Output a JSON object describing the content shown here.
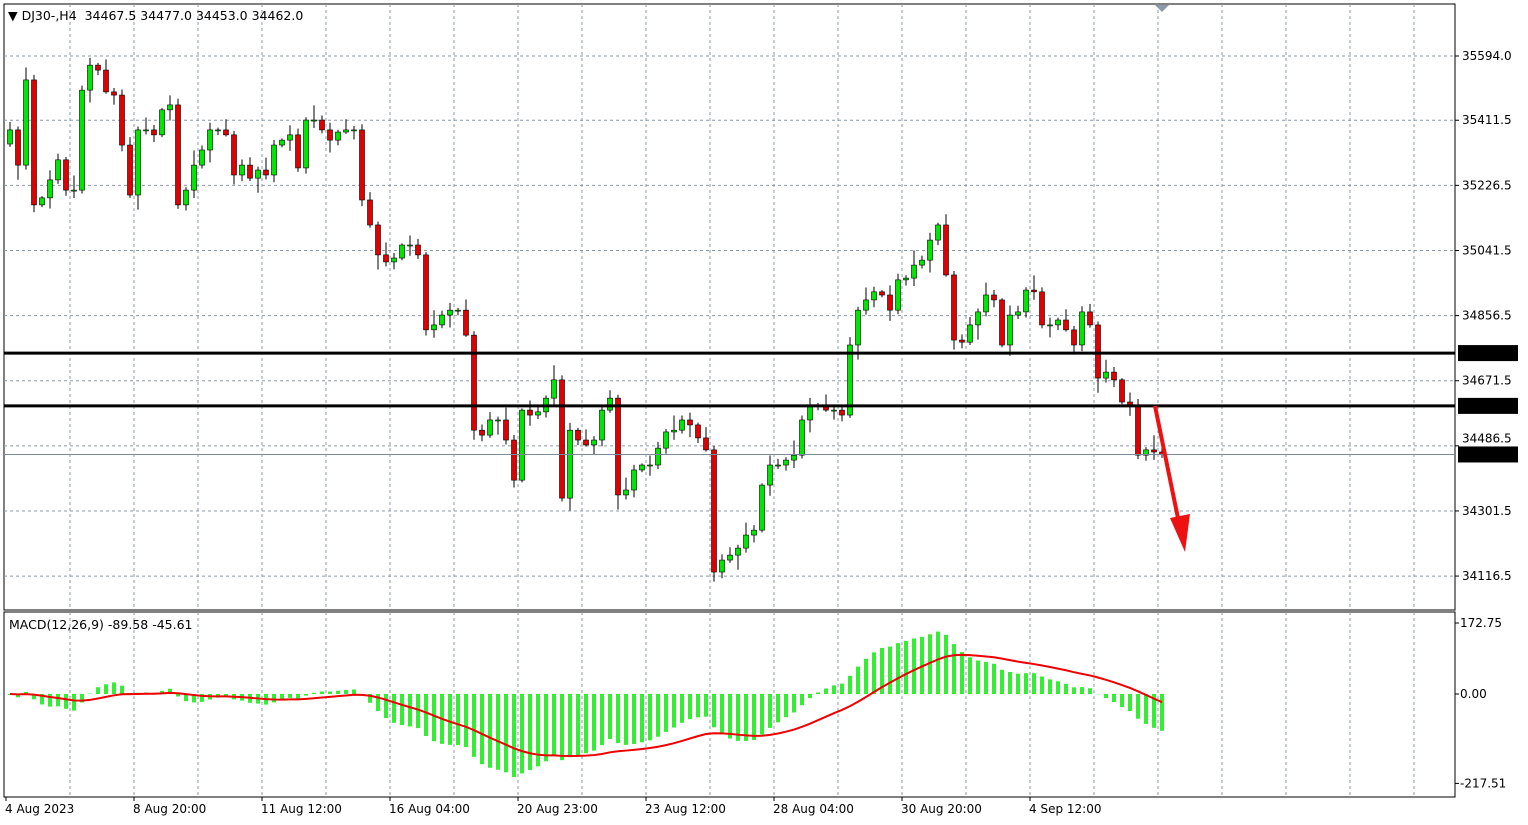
{
  "header": {
    "symbol": "DJ30-,H4",
    "ohlc": "34467.5 34477.0 34453.0 34462.0"
  },
  "colors": {
    "bull": "#00e600",
    "bear": "#e00000",
    "grid": "#8a9aa8",
    "macd_hist": "#33ee33",
    "signal": "#ee0000",
    "arrow": "#ee1111"
  },
  "chart_data": [
    {
      "type": "candlestick",
      "title": "DJ30-,H4",
      "timeframe": "H4",
      "ylim": [
        34060,
        35660
      ],
      "y_ticks": [
        "35594.0",
        "35411.5",
        "35226.5",
        "35041.5",
        "34856.5",
        "34671.5",
        "34486.5",
        "34301.5",
        "34116.5"
      ],
      "x_ticks": [
        "4 Aug 2023",
        "8 Aug 20:00",
        "11 Aug 12:00",
        "16 Aug 04:00",
        "20 Aug 23:00",
        "23 Aug 12:00",
        "28 Aug 04:00",
        "30 Aug 20:00",
        "4 Sep 12:00"
      ],
      "last_price": "34462.0",
      "hlines": [
        {
          "value": 34750.0,
          "label": "34750.0"
        },
        {
          "value": 34600.0,
          "label": "34600.0"
        }
      ],
      "annotation": "red-down-arrow",
      "grid": true,
      "closes": [
        35384,
        35284,
        35526,
        35171,
        35191,
        35242,
        35299,
        35213,
        35213,
        35497,
        35568,
        35554,
        35492,
        35483,
        35341,
        35199,
        35384,
        35384,
        35370,
        35441,
        35455,
        35171,
        35213,
        35284,
        35327,
        35384,
        35384,
        35370,
        35256,
        35284,
        35247,
        35270,
        35256,
        35341,
        35355,
        35370,
        35276,
        35412,
        35412,
        35384,
        35355,
        35378,
        35384,
        35384,
        35185,
        35114,
        35029,
        35009,
        35020,
        35057,
        35057,
        35029,
        34816,
        34830,
        34858,
        34872,
        34872,
        34801,
        34531,
        34517,
        34560,
        34560,
        34503,
        34389,
        34588,
        34574,
        34583,
        34622,
        34674,
        34338,
        34531,
        34503,
        34489,
        34503,
        34588,
        34622,
        34347,
        34361,
        34418,
        34432,
        34432,
        34480,
        34526,
        34531,
        34560,
        34546,
        34509,
        34475,
        34128,
        34162,
        34176,
        34196,
        34233,
        34247,
        34375,
        34432,
        34432,
        34446,
        34460,
        34560,
        34602,
        34602,
        34588,
        34588,
        34574,
        34773,
        34872,
        34901,
        34924,
        34915,
        34872,
        34958,
        34963,
        35000,
        35014,
        35071,
        35114,
        34972,
        34787,
        34781,
        34830,
        34867,
        34915,
        34901,
        34773,
        34858,
        34867,
        34929,
        34924,
        34830,
        34830,
        34844,
        34816,
        34773,
        34867,
        34830,
        34679,
        34696,
        34674,
        34611,
        34602,
        34460,
        34475,
        34469,
        34462
      ]
    },
    {
      "type": "bar+line",
      "title": "MACD(12,26,9)",
      "values_label": "-89.58 -45.61",
      "ylim": [
        -217.51,
        172.75
      ],
      "y_ticks": [
        "172.75",
        "0.00",
        "-217.51"
      ]
    }
  ]
}
